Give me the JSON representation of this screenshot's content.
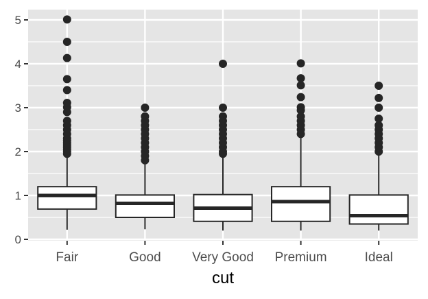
{
  "chart_data": {
    "type": "boxplot",
    "title": "",
    "xlabel": "cut",
    "ylabel": "",
    "categories": [
      "Fair",
      "Good",
      "Very Good",
      "Premium",
      "Ideal"
    ],
    "yticks": [
      0,
      1,
      2,
      3,
      4,
      5
    ],
    "ylim": [
      -0.02,
      5.24
    ],
    "grid": true,
    "legend": "none",
    "boxes": [
      {
        "category": "Fair",
        "whisker_low": 0.22,
        "q1": 0.69,
        "median": 1.0,
        "q3": 1.2,
        "whisker_high": 1.93,
        "outliers": [
          1.95,
          2.0,
          2.05,
          2.1,
          2.15,
          2.2,
          2.25,
          2.3,
          2.4,
          2.5,
          2.6,
          2.7,
          2.9,
          3.01,
          3.11,
          3.4,
          3.65,
          4.13,
          4.5,
          5.01
        ]
      },
      {
        "category": "Good",
        "whisker_low": 0.23,
        "q1": 0.5,
        "median": 0.82,
        "q3": 1.01,
        "whisker_high": 1.77,
        "outliers": [
          1.8,
          1.9,
          2.0,
          2.1,
          2.2,
          2.3,
          2.4,
          2.5,
          2.6,
          2.7,
          2.8,
          3.0
        ]
      },
      {
        "category": "Very Good",
        "whisker_low": 0.2,
        "q1": 0.41,
        "median": 0.71,
        "q3": 1.02,
        "whisker_high": 1.92,
        "outliers": [
          1.95,
          2.0,
          2.1,
          2.2,
          2.3,
          2.4,
          2.5,
          2.6,
          2.7,
          2.8,
          3.0,
          4.0
        ]
      },
      {
        "category": "Premium",
        "whisker_low": 0.2,
        "q1": 0.41,
        "median": 0.86,
        "q3": 1.2,
        "whisker_high": 2.36,
        "outliers": [
          2.4,
          2.5,
          2.6,
          2.7,
          2.8,
          2.94,
          3.01,
          3.24,
          3.51,
          3.67,
          4.01
        ]
      },
      {
        "category": "Ideal",
        "whisker_low": 0.2,
        "q1": 0.35,
        "median": 0.54,
        "q3": 1.01,
        "whisker_high": 1.97,
        "outliers": [
          2.0,
          2.1,
          2.2,
          2.3,
          2.4,
          2.5,
          2.6,
          2.75,
          3.0,
          3.22,
          3.5
        ]
      }
    ]
  },
  "colors": {
    "panel_bg": "#e5e5e5",
    "grid": "#ffffff",
    "box_fill": "#ffffff",
    "box_stroke": "#262626",
    "point": "#262626",
    "tick": "#333333"
  }
}
